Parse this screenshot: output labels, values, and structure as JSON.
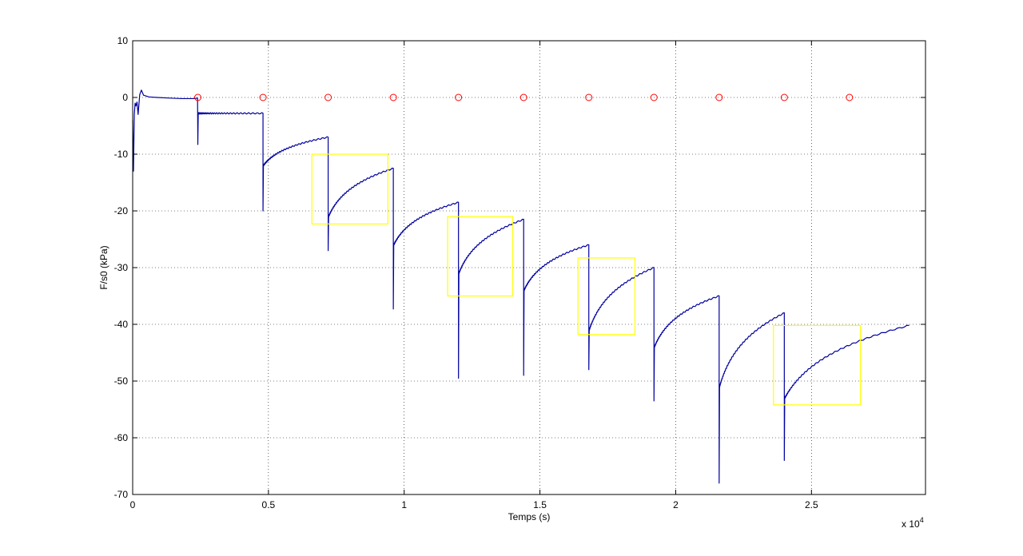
{
  "chart_data": {
    "type": "line",
    "title": "",
    "xlabel": "Temps (s)",
    "ylabel": "F/s0 (kPa)",
    "x_exponent_label": "x 10",
    "x_exponent_power": "4",
    "xlim": [
      0,
      29200
    ],
    "ylim": [
      -70,
      10
    ],
    "x_ticks": [
      0,
      5000,
      10000,
      15000,
      20000,
      25000
    ],
    "x_tick_labels": [
      "0",
      "0.5",
      "1",
      "1.5",
      "2",
      "2.5"
    ],
    "y_ticks": [
      10,
      0,
      -10,
      -20,
      -30,
      -40,
      -50,
      -60,
      -70
    ],
    "y_tick_labels": [
      "10",
      "0",
      "-10",
      "-20",
      "-30",
      "-40",
      "-50",
      "-60",
      "-70"
    ],
    "grid": true,
    "colors": {
      "series": "#0000a0",
      "markers": "#ff0000",
      "boxes": "#ffff00"
    },
    "stage_curve": {
      "name": "",
      "initial_segment": {
        "x": [
          0,
          30,
          60,
          90,
          120,
          160,
          200,
          260,
          320,
          400,
          600,
          900,
          1300,
          1800,
          2300,
          2390
        ],
        "y": [
          -4,
          -13,
          -3,
          -1,
          -1.5,
          -0.8,
          -3,
          0.5,
          1.3,
          0.4,
          0.1,
          0,
          -0.1,
          -0.2,
          -0.2,
          -0.1
        ]
      },
      "stages": [
        {
          "t0": 2400,
          "t1": 4800,
          "start": -2.8,
          "spike": -8.3,
          "end": -2.8
        },
        {
          "t0": 4800,
          "t1": 7200,
          "start": -12,
          "spike": -20,
          "end": -7
        },
        {
          "t0": 7200,
          "t1": 9600,
          "start": -21,
          "spike": -27,
          "end": -12.5
        },
        {
          "t0": 9600,
          "t1": 12000,
          "start": -26,
          "spike": -37.3,
          "end": -18.5
        },
        {
          "t0": 12000,
          "t1": 14400,
          "start": -31,
          "spike": -49.5,
          "end": -21.5
        },
        {
          "t0": 14400,
          "t1": 16800,
          "start": -34,
          "spike": -49,
          "end": -26
        },
        {
          "t0": 16800,
          "t1": 19200,
          "start": -41,
          "spike": -48,
          "end": -30
        },
        {
          "t0": 19200,
          "t1": 21600,
          "start": -44,
          "spike": -53.5,
          "end": -35
        },
        {
          "t0": 21600,
          "t1": 24000,
          "start": -51,
          "spike": -68,
          "end": -38
        },
        {
          "t0": 24000,
          "t1": 28600,
          "start": -53,
          "spike": -64,
          "end": -40.2
        }
      ]
    },
    "markers": {
      "type": "scatter",
      "x": [
        2400,
        4800,
        7200,
        9600,
        12000,
        14400,
        16800,
        19200,
        21600,
        24000,
        26400
      ],
      "y": [
        0,
        0,
        0,
        0,
        0,
        0,
        0,
        0,
        0,
        0,
        0
      ]
    },
    "boxes": [
      {
        "x0": 6600,
        "x1": 9400,
        "y0": -22.3,
        "y1": -10
      },
      {
        "x0": 11600,
        "x1": 14000,
        "y0": -35,
        "y1": -21
      },
      {
        "x0": 16400,
        "x1": 18500,
        "y0": -41.8,
        "y1": -28.3
      },
      {
        "x0": 23600,
        "x1": 26800,
        "y0": -54.2,
        "y1": -40.2
      }
    ]
  }
}
